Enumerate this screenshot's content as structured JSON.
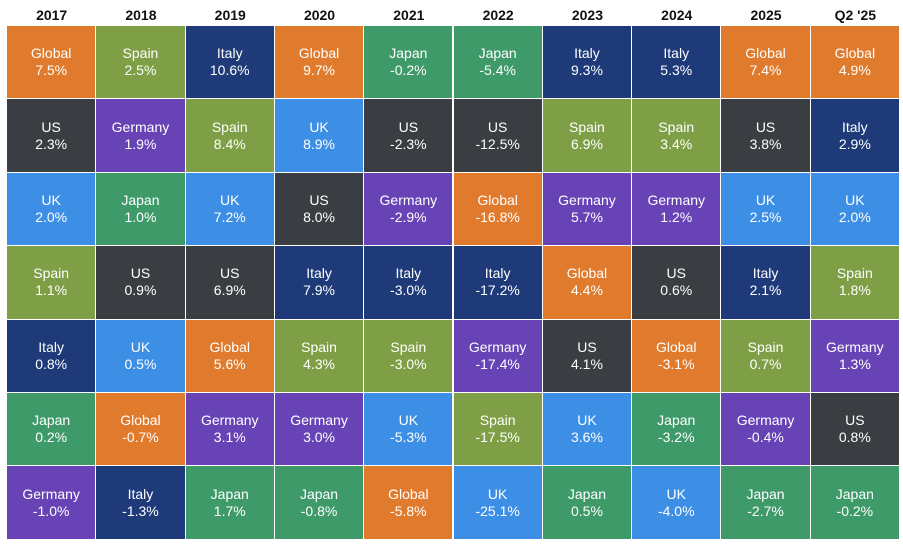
{
  "chart_data": {
    "type": "table",
    "columns": [
      "2017",
      "2018",
      "2019",
      "2020",
      "2021",
      "2022",
      "2023",
      "2024",
      "2025",
      "Q2 '25"
    ],
    "colors": {
      "Global": "#E07B2E",
      "Spain": "#7E9F45",
      "Italy": "#1E3A78",
      "Japan": "#3F9A6A",
      "US": "#3A3D42",
      "Germany": "#6743B5",
      "UK": "#3D8FE6"
    },
    "ranks": [
      [
        [
          "Global",
          "7.5%"
        ],
        [
          "Spain",
          "2.5%"
        ],
        [
          "Italy",
          "10.6%"
        ],
        [
          "Global",
          "9.7%"
        ],
        [
          "Japan",
          "-0.2%"
        ],
        [
          "Japan",
          "-5.4%"
        ],
        [
          "Italy",
          "9.3%"
        ],
        [
          "Italy",
          "5.3%"
        ],
        [
          "Global",
          "7.4%"
        ],
        [
          "Global",
          "4.9%"
        ]
      ],
      [
        [
          "US",
          "2.3%"
        ],
        [
          "Germany",
          "1.9%"
        ],
        [
          "Spain",
          "8.4%"
        ],
        [
          "UK",
          "8.9%"
        ],
        [
          "US",
          "-2.3%"
        ],
        [
          "US",
          "-12.5%"
        ],
        [
          "Spain",
          "6.9%"
        ],
        [
          "Spain",
          "3.4%"
        ],
        [
          "US",
          "3.8%"
        ],
        [
          "Italy",
          "2.9%"
        ]
      ],
      [
        [
          "UK",
          "2.0%"
        ],
        [
          "Japan",
          "1.0%"
        ],
        [
          "UK",
          "7.2%"
        ],
        [
          "US",
          "8.0%"
        ],
        [
          "Germany",
          "-2.9%"
        ],
        [
          "Global",
          "-16.8%"
        ],
        [
          "Germany",
          "5.7%"
        ],
        [
          "Germany",
          "1.2%"
        ],
        [
          "UK",
          "2.5%"
        ],
        [
          "UK",
          "2.0%"
        ]
      ],
      [
        [
          "Spain",
          "1.1%"
        ],
        [
          "US",
          "0.9%"
        ],
        [
          "US",
          "6.9%"
        ],
        [
          "Italy",
          "7.9%"
        ],
        [
          "Italy",
          "-3.0%"
        ],
        [
          "Italy",
          "-17.2%"
        ],
        [
          "Global",
          "4.4%"
        ],
        [
          "US",
          "0.6%"
        ],
        [
          "Italy",
          "2.1%"
        ],
        [
          "Spain",
          "1.8%"
        ]
      ],
      [
        [
          "Italy",
          "0.8%"
        ],
        [
          "UK",
          "0.5%"
        ],
        [
          "Global",
          "5.6%"
        ],
        [
          "Spain",
          "4.3%"
        ],
        [
          "Spain",
          "-3.0%"
        ],
        [
          "Germany",
          "-17.4%"
        ],
        [
          "US",
          "4.1%"
        ],
        [
          "Global",
          "-3.1%"
        ],
        [
          "Spain",
          "0.7%"
        ],
        [
          "Germany",
          "1.3%"
        ]
      ],
      [
        [
          "Japan",
          "0.2%"
        ],
        [
          "Global",
          "-0.7%"
        ],
        [
          "Germany",
          "3.1%"
        ],
        [
          "Germany",
          "3.0%"
        ],
        [
          "UK",
          "-5.3%"
        ],
        [
          "Spain",
          "-17.5%"
        ],
        [
          "UK",
          "3.6%"
        ],
        [
          "Japan",
          "-3.2%"
        ],
        [
          "Germany",
          "-0.4%"
        ],
        [
          "US",
          "0.8%"
        ]
      ],
      [
        [
          "Germany",
          "-1.0%"
        ],
        [
          "Italy",
          "-1.3%"
        ],
        [
          "Japan",
          "1.7%"
        ],
        [
          "Japan",
          "-0.8%"
        ],
        [
          "Global",
          "-5.8%"
        ],
        [
          "UK",
          "-25.1%"
        ],
        [
          "Japan",
          "0.5%"
        ],
        [
          "UK",
          "-4.0%"
        ],
        [
          "Japan",
          "-2.7%"
        ],
        [
          "Japan",
          "-0.2%"
        ]
      ]
    ]
  }
}
